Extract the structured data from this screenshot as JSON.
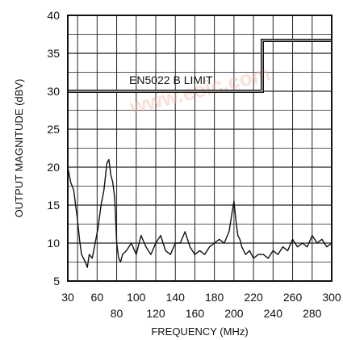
{
  "chart_data": {
    "type": "line",
    "title": "",
    "xlabel": "FREQUENCY (MHz)",
    "ylabel": "OUTPUT MAGNITUDE (dBV)",
    "xlim": [
      30,
      300
    ],
    "ylim": [
      5,
      40
    ],
    "grid": true,
    "legend": "none",
    "x_ticks_upper": [
      "30",
      "60",
      "100",
      "140",
      "180",
      "220",
      "260",
      "300"
    ],
    "x_ticks_upper_values": [
      30,
      60,
      100,
      140,
      180,
      220,
      260,
      300
    ],
    "x_ticks_lower": [
      "80",
      "120",
      "160",
      "200",
      "240",
      "280"
    ],
    "x_ticks_lower_values": [
      80,
      120,
      160,
      200,
      240,
      280
    ],
    "y_ticks": [
      "5",
      "10",
      "15",
      "20",
      "25",
      "30",
      "35",
      "40"
    ],
    "y_ticks_values": [
      5,
      10,
      15,
      20,
      25,
      30,
      35,
      40
    ],
    "annotation": "EN5022 B LIMIT",
    "series": [
      {
        "role": "limit",
        "color": "#111111",
        "x": [
          30,
          229,
          229,
          300
        ],
        "y": [
          30,
          30,
          36.7,
          36.7
        ]
      },
      {
        "role": "measurement",
        "color": "#111111",
        "x": [
          30,
          33,
          36,
          38,
          40,
          42,
          44,
          46,
          48,
          50,
          52,
          55,
          58,
          61,
          64,
          67,
          70,
          72,
          74,
          76,
          78,
          80,
          82,
          84,
          86,
          90,
          95,
          100,
          105,
          110,
          115,
          120,
          125,
          130,
          135,
          140,
          145,
          150,
          155,
          160,
          165,
          170,
          175,
          180,
          185,
          190,
          195,
          198,
          200,
          202,
          204,
          206,
          208,
          212,
          216,
          220,
          225,
          230,
          235,
          240,
          245,
          250,
          255,
          260,
          265,
          270,
          275,
          280,
          285,
          290,
          295,
          300
        ],
        "y": [
          20,
          18,
          17,
          15,
          13,
          10.5,
          8.5,
          8,
          7.5,
          6.8,
          8.5,
          8,
          10,
          12,
          15,
          17,
          20.5,
          21,
          19,
          18,
          16,
          10,
          8,
          7.5,
          8.5,
          9,
          10,
          8.5,
          11,
          9.5,
          8.5,
          10,
          11,
          9,
          8.5,
          10,
          10,
          11.5,
          9.5,
          8.5,
          9,
          8.5,
          9.5,
          10,
          10.5,
          10,
          11.5,
          14,
          15.5,
          13,
          11,
          10.5,
          9.5,
          8.5,
          9,
          8,
          8.5,
          8.5,
          8,
          9,
          8.5,
          9.5,
          9,
          10.5,
          9.5,
          10,
          9.5,
          11,
          10,
          10.5,
          9.5,
          10
        ]
      }
    ]
  },
  "watermark": "www.eeic.com"
}
